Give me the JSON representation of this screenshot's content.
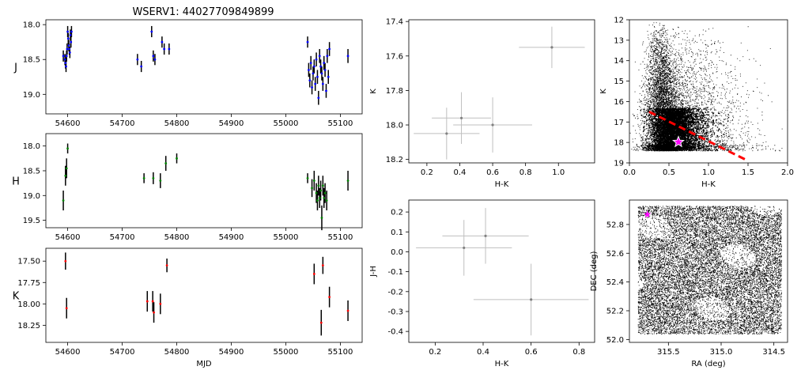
{
  "figure": {
    "title": "WSERV1: 44027709849899"
  },
  "chart_data": [
    {
      "type": "scatter",
      "title": "WSERV1: 44027709849899",
      "xlabel": "",
      "ylabel": "J",
      "xlim": [
        54560,
        55140
      ],
      "ylim": [
        19.28,
        17.93
      ],
      "y_inverted": true,
      "xticks": [
        "54600",
        "54700",
        "54800",
        "54900",
        "55000",
        "55100"
      ],
      "yticks": [
        "18.0",
        "18.5",
        "19.0"
      ],
      "ytick_values": [
        18.0,
        18.5,
        19.0
      ],
      "color": "#0000ff",
      "series": [
        {
          "x": [
            54592,
            54595,
            54596,
            54597,
            54598,
            54599,
            54600,
            54601,
            54602,
            54603,
            54604,
            54605,
            54606,
            54607,
            54728,
            54735,
            54754,
            54757,
            54760,
            54773,
            54777,
            54786,
            55040,
            55042,
            55044,
            55046,
            55048,
            55050,
            55052,
            55054,
            55056,
            55058,
            55060,
            55062,
            55064,
            55066,
            55068,
            55070,
            55072,
            55074,
            55076,
            55078,
            55080,
            55114
          ],
          "y": [
            18.45,
            18.5,
            18.55,
            18.6,
            18.45,
            18.35,
            18.1,
            18.2,
            18.3,
            18.35,
            18.4,
            18.15,
            18.25,
            18.1,
            18.5,
            18.6,
            18.1,
            18.45,
            18.5,
            18.25,
            18.35,
            18.35,
            18.25,
            18.65,
            18.8,
            18.55,
            18.9,
            18.7,
            18.6,
            18.85,
            18.5,
            18.75,
            19.05,
            18.45,
            18.6,
            18.7,
            18.85,
            18.55,
            18.65,
            18.95,
            18.45,
            18.75,
            18.35,
            18.45
          ],
          "err": [
            0.08,
            0.08,
            0.08,
            0.08,
            0.08,
            0.08,
            0.08,
            0.08,
            0.08,
            0.08,
            0.08,
            0.08,
            0.08,
            0.08,
            0.08,
            0.08,
            0.08,
            0.08,
            0.08,
            0.08,
            0.08,
            0.08,
            0.08,
            0.1,
            0.1,
            0.1,
            0.1,
            0.1,
            0.1,
            0.1,
            0.1,
            0.1,
            0.1,
            0.1,
            0.1,
            0.1,
            0.1,
            0.1,
            0.1,
            0.1,
            0.1,
            0.1,
            0.1,
            0.1
          ]
        }
      ]
    },
    {
      "type": "scatter",
      "xlabel": "",
      "ylabel": "H",
      "xlim": [
        54560,
        55140
      ],
      "ylim": [
        19.65,
        17.75
      ],
      "y_inverted": true,
      "xticks": [
        "54600",
        "54700",
        "54800",
        "54900",
        "55000",
        "55100"
      ],
      "yticks": [
        "18.0",
        "18.5",
        "19.0",
        "19.5"
      ],
      "ytick_values": [
        18.0,
        18.5,
        19.0,
        19.5
      ],
      "color": "#008000",
      "series": [
        {
          "x": [
            54592,
            54596,
            54598,
            54600,
            54740,
            54757,
            54770,
            54780,
            54800,
            55040,
            55048,
            55052,
            55056,
            55058,
            55060,
            55062,
            55064,
            55066,
            55068,
            55070,
            55072,
            55075,
            55114
          ],
          "y": [
            19.1,
            18.6,
            18.45,
            18.05,
            18.65,
            18.65,
            18.7,
            18.35,
            18.25,
            18.65,
            18.85,
            18.7,
            18.95,
            19.1,
            18.8,
            19.05,
            18.9,
            19.45,
            18.8,
            19.05,
            18.95,
            19.1,
            18.7
          ],
          "err": [
            0.2,
            0.2,
            0.2,
            0.1,
            0.1,
            0.12,
            0.15,
            0.15,
            0.1,
            0.1,
            0.18,
            0.2,
            0.2,
            0.2,
            0.2,
            0.2,
            0.2,
            0.25,
            0.2,
            0.2,
            0.2,
            0.2,
            0.2
          ]
        }
      ]
    },
    {
      "type": "scatter",
      "xlabel": "MJD",
      "ylabel": "K",
      "xlim": [
        54560,
        55140
      ],
      "ylim": [
        18.45,
        17.35
      ],
      "y_inverted": true,
      "xticks": [
        "54600",
        "54700",
        "54800",
        "54900",
        "55000",
        "55100"
      ],
      "yticks": [
        "17.50",
        "17.75",
        "18.00",
        "18.25"
      ],
      "ytick_values": [
        17.5,
        17.75,
        18.0,
        18.25
      ],
      "color": "#ff0000",
      "series": [
        {
          "x": [
            54596,
            54598,
            54746,
            54756,
            54758,
            54770,
            54782,
            55052,
            55065,
            55068,
            55080,
            55114
          ],
          "y": [
            17.5,
            18.05,
            17.97,
            17.97,
            18.1,
            18.0,
            17.55,
            17.65,
            18.22,
            17.55,
            17.92,
            18.08
          ],
          "err": [
            0.1,
            0.12,
            0.12,
            0.12,
            0.12,
            0.12,
            0.08,
            0.12,
            0.15,
            0.1,
            0.12,
            0.12
          ]
        }
      ]
    },
    {
      "type": "scatter",
      "xlabel": "H-K",
      "ylabel": "K",
      "xlim": [
        0.09,
        1.22
      ],
      "ylim": [
        18.22,
        17.39
      ],
      "y_inverted": true,
      "xticks": [
        "0.2",
        "0.4",
        "0.6",
        "0.8",
        "1.0"
      ],
      "xtick_values": [
        0.2,
        0.4,
        0.6,
        0.8,
        1.0
      ],
      "yticks": [
        "17.4",
        "17.6",
        "17.8",
        "18.0",
        "18.2"
      ],
      "ytick_values": [
        17.4,
        17.6,
        17.8,
        18.0,
        18.2
      ],
      "color": "#808080",
      "series": [
        {
          "x": [
            0.96,
            0.41,
            0.6,
            0.32
          ],
          "y": [
            17.55,
            17.96,
            18.0,
            18.05
          ],
          "xerr": [
            0.2,
            0.18,
            0.24,
            0.2
          ],
          "yerr": [
            0.12,
            0.15,
            0.16,
            0.15
          ]
        }
      ]
    },
    {
      "type": "scatter",
      "xlabel": "H-K",
      "ylabel": "J-H",
      "xlim": [
        0.09,
        0.865
      ],
      "ylim": [
        -0.455,
        0.26
      ],
      "xticks": [
        "0.2",
        "0.4",
        "0.6",
        "0.8"
      ],
      "xtick_values": [
        0.2,
        0.4,
        0.6,
        0.8
      ],
      "yticks": [
        "0.2",
        "0.1",
        "0.0",
        "-0.1",
        "-0.2",
        "-0.3",
        "-0.4"
      ],
      "ytick_values": [
        0.2,
        0.1,
        0.0,
        -0.1,
        -0.2,
        -0.3,
        -0.4
      ],
      "color": "#808080",
      "series": [
        {
          "x": [
            0.41,
            0.32,
            0.6
          ],
          "y": [
            0.08,
            0.02,
            -0.24
          ],
          "xerr": [
            0.18,
            0.2,
            0.24
          ],
          "yerr": [
            0.14,
            0.14,
            0.18
          ]
        }
      ]
    },
    {
      "type": "scatter",
      "xlabel": "H-K",
      "ylabel": "K",
      "xlim": [
        0.0,
        2.0
      ],
      "ylim": [
        19,
        12
      ],
      "y_inverted": true,
      "xticks": [
        "0.0",
        "0.5",
        "1.0",
        "1.5",
        "2.0"
      ],
      "xtick_values": [
        0,
        0.5,
        1.0,
        1.5,
        2.0
      ],
      "yticks": [
        "12",
        "13",
        "14",
        "15",
        "16",
        "17",
        "18",
        "19"
      ],
      "ytick_values": [
        12,
        13,
        14,
        15,
        16,
        17,
        18,
        19
      ],
      "background": "field stars density",
      "reddening_line": {
        "x": [
          0.25,
          1.5
        ],
        "y": [
          16.5,
          18.9
        ],
        "color": "#ff0000",
        "style": "dashed"
      },
      "star_marker": {
        "x": 0.62,
        "y": 17.98,
        "color": "#ff00ff"
      }
    },
    {
      "type": "scatter",
      "xlabel": "RA (deg)",
      "ylabel": "DEC (deg)",
      "xlim": [
        315.87,
        314.37
      ],
      "ylim": [
        51.98,
        52.97
      ],
      "x_inverted": true,
      "xticks": [
        "315.5",
        "315.0",
        "314.5"
      ],
      "xtick_values": [
        315.5,
        315.0,
        314.5
      ],
      "yticks": [
        "52.0",
        "52.2",
        "52.4",
        "52.6",
        "52.8"
      ],
      "ytick_values": [
        52.0,
        52.2,
        52.4,
        52.6,
        52.8
      ],
      "background": "field stars positions",
      "star_marker": {
        "x": 315.7,
        "y": 52.87,
        "color": "#ff00ff"
      }
    }
  ]
}
